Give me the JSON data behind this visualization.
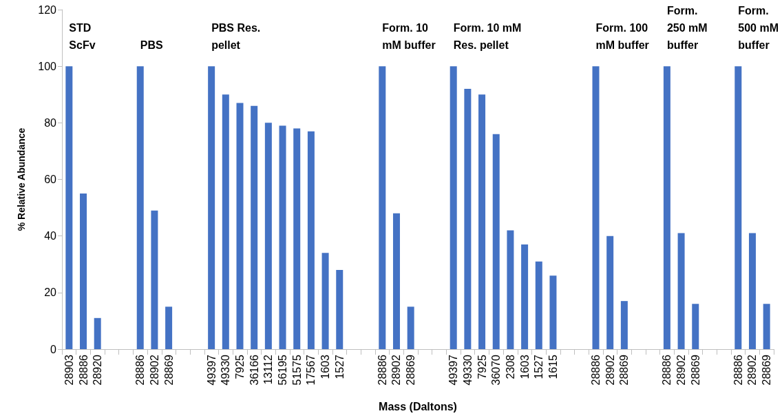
{
  "chart_data": {
    "type": "bar",
    "xlabel": "Mass (Daltons)",
    "ylabel": "% Relative Abundance",
    "color": "#4472c4",
    "ylim": [
      0,
      120
    ],
    "yticks": [
      0,
      20,
      40,
      60,
      80,
      100,
      120
    ],
    "categories": [
      "28903",
      "28886",
      "28920",
      null,
      null,
      "28886",
      "28902",
      "28869",
      null,
      null,
      "49397",
      "49330",
      "7925",
      "36166",
      "13112",
      "56195",
      "51575",
      "17567",
      "1603",
      "1527",
      null,
      null,
      "28886",
      "28902",
      "28869",
      null,
      null,
      "49397",
      "49330",
      "7925",
      "36070",
      "2308",
      "1603",
      "1527",
      "1615",
      null,
      null,
      "28886",
      "28902",
      "28869",
      null,
      null,
      "28886",
      "28902",
      "28869",
      null,
      null,
      "28886",
      "28902",
      "28869"
    ],
    "values": [
      100,
      55,
      11,
      null,
      null,
      100,
      49,
      15,
      null,
      null,
      100,
      90,
      87,
      86,
      80,
      79,
      78,
      77,
      34,
      28,
      null,
      null,
      100,
      48,
      15,
      null,
      null,
      100,
      92,
      90,
      76,
      42,
      37,
      31,
      26,
      null,
      null,
      100,
      40,
      17,
      null,
      null,
      100,
      41,
      16,
      null,
      null,
      100,
      41,
      16
    ],
    "annotations": [
      "STD\nScFv",
      "PBS",
      "PBS Res.\npellet",
      "Form. 10\nmM buffer",
      "Form. 10 mM\nRes. pellet",
      "Form. 100\nmM buffer",
      "Form.\n250 mM\nbuffer",
      "Form.\n500 mM\nbuffer"
    ]
  }
}
